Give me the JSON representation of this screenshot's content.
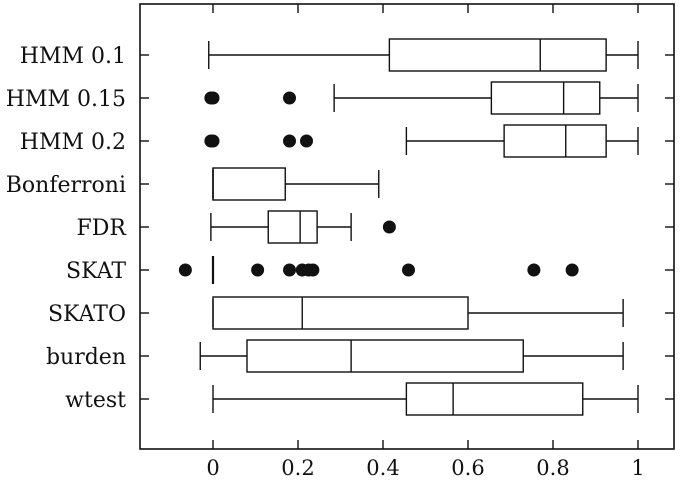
{
  "chart_data": {
    "type": "boxplot",
    "orientation": "horizontal",
    "xlim": [
      -0.155,
      1.08
    ],
    "xticks": [
      0,
      0.2,
      0.4,
      0.6,
      0.8,
      1
    ],
    "xtick_labels": [
      "0",
      "0.2",
      "0.4",
      "0.6",
      "0.8",
      "1"
    ],
    "grid": false,
    "categories": [
      "HMM 0.1",
      "HMM 0.15",
      "HMM 0.2",
      "Bonferroni",
      "FDR",
      "SKAT",
      "SKATO",
      "burden",
      "wtest"
    ],
    "boxes": [
      {
        "label": "HMM 0.1",
        "whisker_low": -0.01,
        "q1": 0.415,
        "median": 0.77,
        "q3": 0.925,
        "whisker_high": 1.0,
        "outliers": []
      },
      {
        "label": "HMM 0.15",
        "whisker_low": 0.285,
        "q1": 0.655,
        "median": 0.825,
        "q3": 0.91,
        "whisker_high": 1.0,
        "outliers": [
          -0.005,
          0.0,
          0.18
        ]
      },
      {
        "label": "HMM 0.2",
        "whisker_low": 0.455,
        "q1": 0.685,
        "median": 0.83,
        "q3": 0.925,
        "whisker_high": 1.0,
        "outliers": [
          -0.005,
          0.0,
          0.18,
          0.22
        ]
      },
      {
        "label": "Bonferroni",
        "whisker_low": 0.0,
        "q1": 0.0,
        "median": 0.0,
        "q3": 0.17,
        "whisker_high": 0.39,
        "outliers": []
      },
      {
        "label": "FDR",
        "whisker_low": -0.005,
        "q1": 0.13,
        "median": 0.205,
        "q3": 0.245,
        "whisker_high": 0.325,
        "outliers": [
          0.415
        ]
      },
      {
        "label": "SKAT",
        "whisker_low": 0.0,
        "q1": 0.0,
        "median": 0.0,
        "q3": 0.0,
        "whisker_high": 0.0,
        "outliers": [
          -0.065,
          0.105,
          0.18,
          0.21,
          0.225,
          0.235,
          0.46,
          0.755,
          0.845
        ]
      },
      {
        "label": "SKATO",
        "whisker_low": 0.0,
        "q1": 0.0,
        "median": 0.21,
        "q3": 0.6,
        "whisker_high": 0.965,
        "outliers": []
      },
      {
        "label": "burden",
        "whisker_low": -0.03,
        "q1": 0.08,
        "median": 0.325,
        "q3": 0.73,
        "whisker_high": 0.965,
        "outliers": []
      },
      {
        "label": "wtest",
        "whisker_low": 0.0,
        "q1": 0.455,
        "median": 0.565,
        "q3": 0.87,
        "whisker_high": 1.0,
        "outliers": []
      }
    ]
  }
}
